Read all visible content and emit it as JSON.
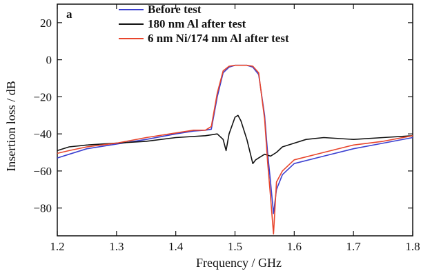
{
  "chart_data": {
    "type": "line",
    "panel_label": "a",
    "xlabel": "Frequency / GHz",
    "ylabel": "Insertion loss / dB",
    "xlim": [
      1.2,
      1.8
    ],
    "ylim": [
      -95,
      30
    ],
    "xticks": [
      {
        "value": 1.2,
        "label": "1.2"
      },
      {
        "value": 1.3,
        "label": "1.3"
      },
      {
        "value": 1.4,
        "label": "1.4"
      },
      {
        "value": 1.5,
        "label": "1.5"
      },
      {
        "value": 1.6,
        "label": "1.6"
      },
      {
        "value": 1.7,
        "label": "1.7"
      },
      {
        "value": 1.8,
        "label": "1.8"
      }
    ],
    "yticks": [
      {
        "value": 20,
        "label": "20"
      },
      {
        "value": 0,
        "label": "0"
      },
      {
        "value": -20,
        "label": "−20"
      },
      {
        "value": -40,
        "label": "−40"
      },
      {
        "value": -60,
        "label": "−60"
      },
      {
        "value": -80,
        "label": "−80"
      }
    ],
    "grid": false,
    "legend_position": "top-center",
    "series": [
      {
        "name": "Before test",
        "color": "#3b3fd0",
        "points": [
          [
            1.2,
            -53
          ],
          [
            1.22,
            -51
          ],
          [
            1.25,
            -48
          ],
          [
            1.3,
            -45.5
          ],
          [
            1.35,
            -43
          ],
          [
            1.4,
            -40
          ],
          [
            1.43,
            -38.5
          ],
          [
            1.45,
            -38
          ],
          [
            1.46,
            -37.5
          ],
          [
            1.47,
            -20
          ],
          [
            1.48,
            -7
          ],
          [
            1.49,
            -4
          ],
          [
            1.5,
            -3
          ],
          [
            1.51,
            -3
          ],
          [
            1.52,
            -3
          ],
          [
            1.53,
            -4
          ],
          [
            1.54,
            -8
          ],
          [
            1.55,
            -30
          ],
          [
            1.555,
            -50
          ],
          [
            1.56,
            -66
          ],
          [
            1.565,
            -83
          ],
          [
            1.57,
            -70
          ],
          [
            1.58,
            -62
          ],
          [
            1.6,
            -56
          ],
          [
            1.65,
            -52
          ],
          [
            1.7,
            -48
          ],
          [
            1.75,
            -45
          ],
          [
            1.8,
            -42
          ]
        ]
      },
      {
        "name": "180 nm Al after test",
        "color": "#111111",
        "points": [
          [
            1.2,
            -49
          ],
          [
            1.22,
            -47
          ],
          [
            1.25,
            -46
          ],
          [
            1.3,
            -45
          ],
          [
            1.35,
            -44
          ],
          [
            1.4,
            -42
          ],
          [
            1.45,
            -41
          ],
          [
            1.47,
            -40
          ],
          [
            1.48,
            -43
          ],
          [
            1.485,
            -49
          ],
          [
            1.49,
            -40
          ],
          [
            1.5,
            -31
          ],
          [
            1.505,
            -30
          ],
          [
            1.51,
            -33
          ],
          [
            1.52,
            -43
          ],
          [
            1.53,
            -56
          ],
          [
            1.535,
            -54
          ],
          [
            1.54,
            -53
          ],
          [
            1.55,
            -51
          ],
          [
            1.56,
            -52
          ],
          [
            1.57,
            -50
          ],
          [
            1.58,
            -47
          ],
          [
            1.6,
            -45
          ],
          [
            1.62,
            -43
          ],
          [
            1.65,
            -42
          ],
          [
            1.7,
            -43
          ],
          [
            1.75,
            -42
          ],
          [
            1.8,
            -41
          ]
        ]
      },
      {
        "name": "6 nm Ni/174 nm Al after test",
        "color": "#e8452c",
        "points": [
          [
            1.2,
            -50.5
          ],
          [
            1.22,
            -49
          ],
          [
            1.25,
            -47
          ],
          [
            1.3,
            -45
          ],
          [
            1.35,
            -42
          ],
          [
            1.4,
            -39.5
          ],
          [
            1.43,
            -38
          ],
          [
            1.45,
            -38
          ],
          [
            1.46,
            -36
          ],
          [
            1.47,
            -18
          ],
          [
            1.48,
            -6
          ],
          [
            1.49,
            -3.5
          ],
          [
            1.5,
            -3
          ],
          [
            1.51,
            -3
          ],
          [
            1.52,
            -3
          ],
          [
            1.53,
            -3.5
          ],
          [
            1.54,
            -7
          ],
          [
            1.55,
            -32
          ],
          [
            1.555,
            -55
          ],
          [
            1.56,
            -74
          ],
          [
            1.565,
            -94
          ],
          [
            1.57,
            -66
          ],
          [
            1.58,
            -60
          ],
          [
            1.6,
            -54
          ],
          [
            1.65,
            -50
          ],
          [
            1.7,
            -46
          ],
          [
            1.75,
            -44
          ],
          [
            1.8,
            -41
          ]
        ]
      }
    ]
  }
}
